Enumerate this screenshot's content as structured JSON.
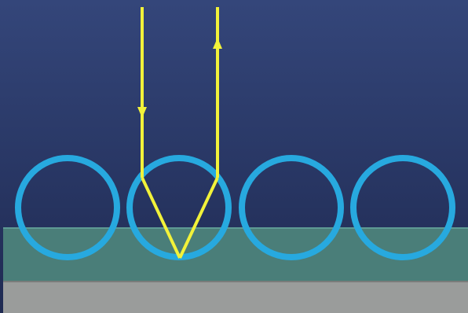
{
  "colors": {
    "background_top": "#34467a",
    "background_bottom": "#1f2a52",
    "layer": "#4a7e79",
    "layer_edge": "#5e9a94",
    "substrate": "#9a9c9b",
    "substrate_edge": "#7a7c7b",
    "bead_stroke": "#27a9df",
    "ray": "#f2f23a"
  },
  "diagram": {
    "bead_count": 4,
    "ray_path": [
      "incident-downward",
      "reflect-at-bottom-of-bead-2",
      "exit-upward"
    ],
    "arrow_icons": [
      "arrow-down-icon",
      "arrow-up-icon"
    ]
  }
}
